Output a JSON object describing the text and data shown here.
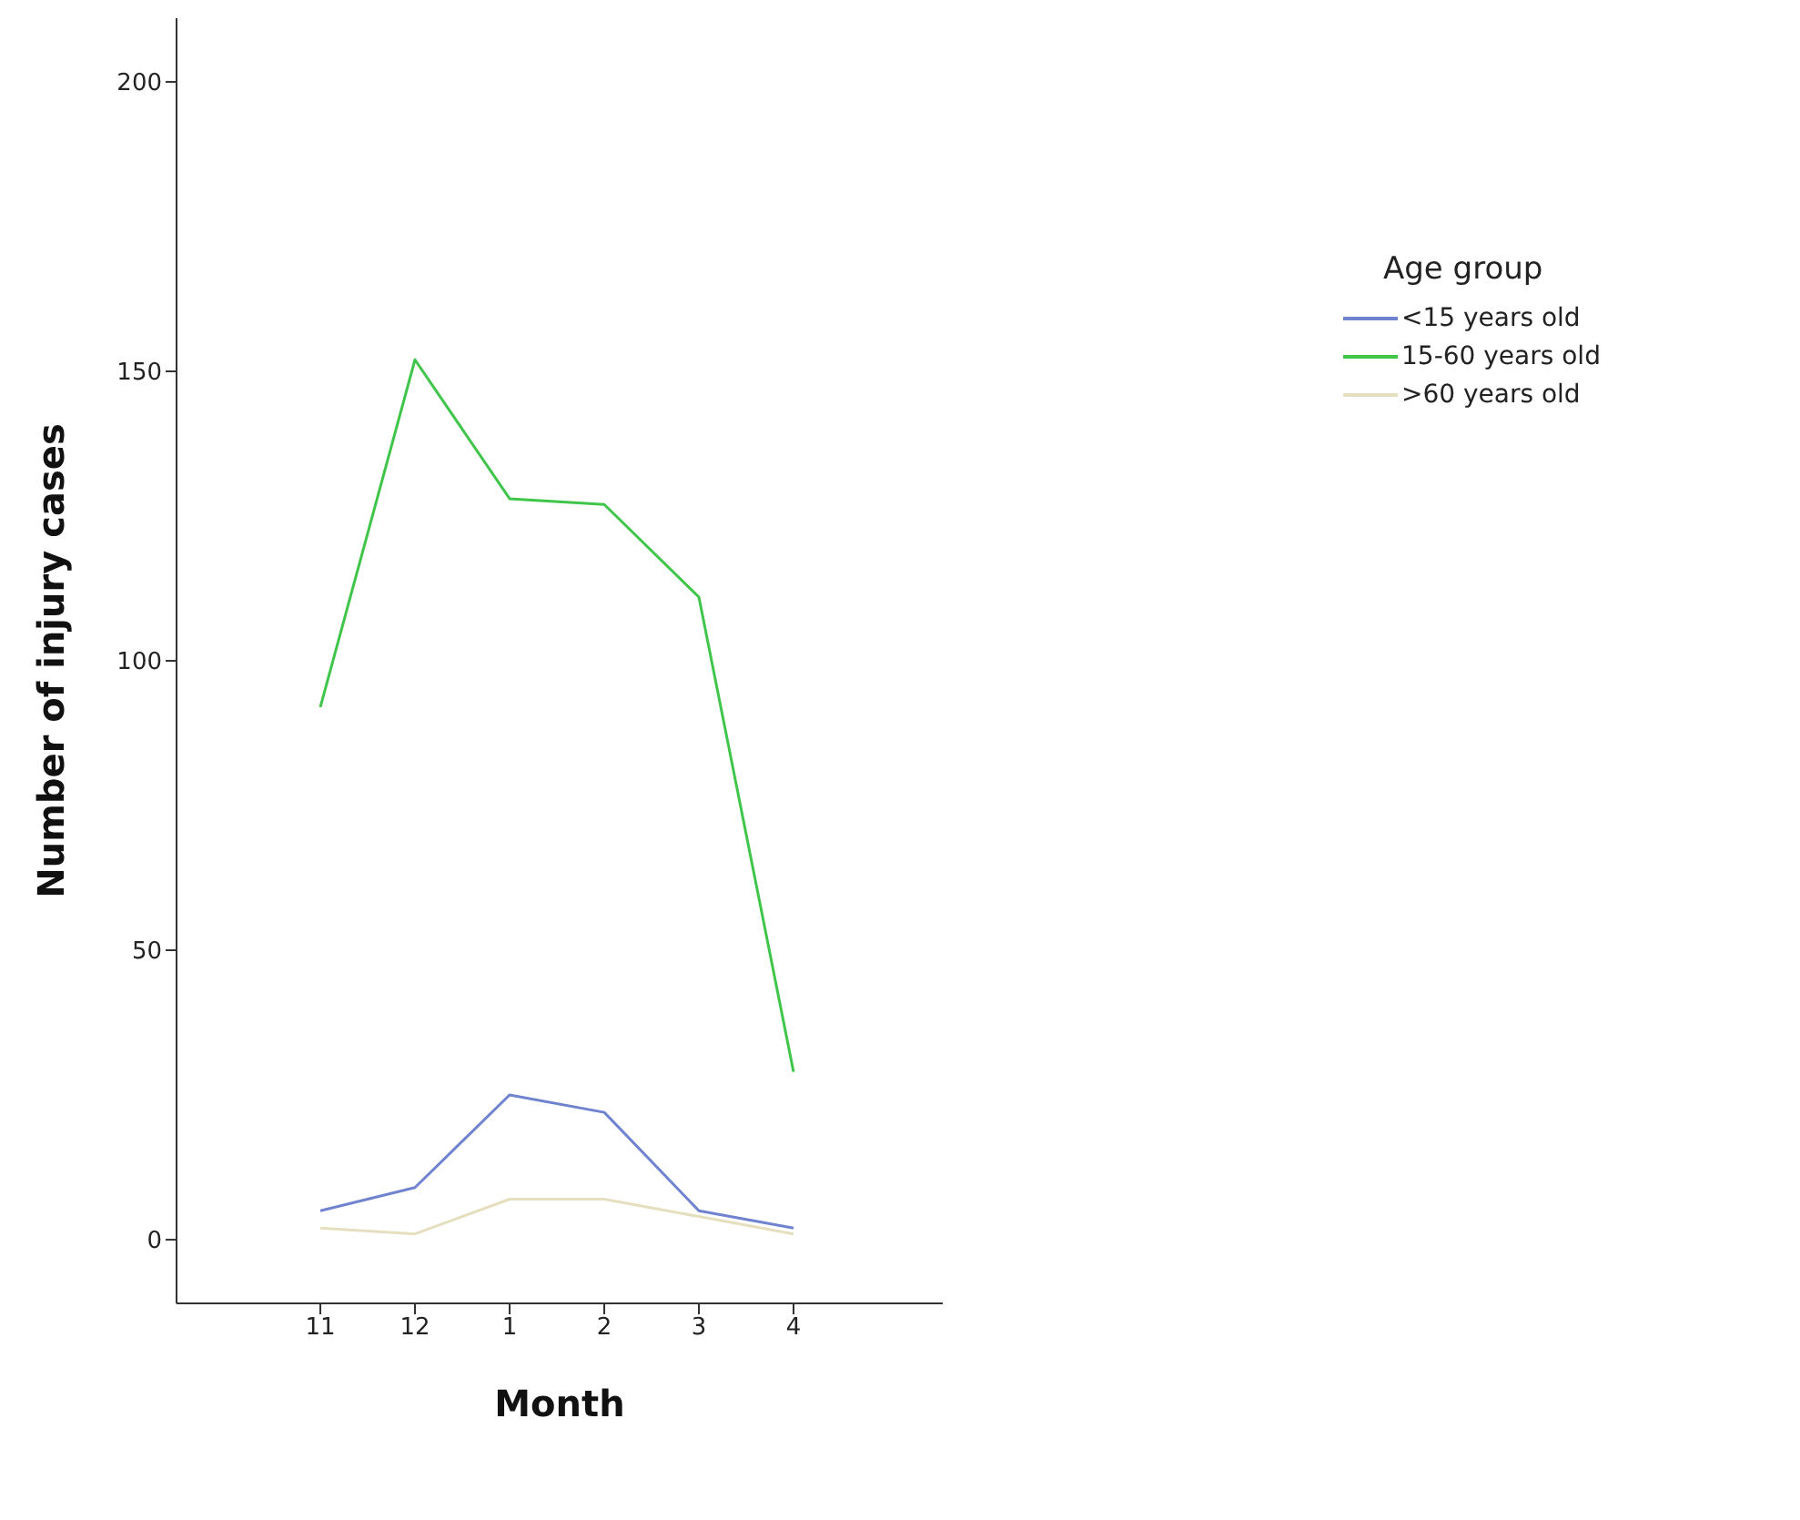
{
  "chart_data": {
    "type": "line",
    "xlabel": "Month",
    "ylabel": "Number of injury cases",
    "legend_title": "Age group",
    "categories": [
      "11",
      "12",
      "1",
      "2",
      "3",
      "4"
    ],
    "series": [
      {
        "name": "<15 years old",
        "color": "#7083cf",
        "values": [
          5,
          9,
          25,
          22,
          5,
          2
        ]
      },
      {
        "name": "15-60 years old",
        "color": "#3fc64a",
        "values": [
          92,
          152,
          128,
          127,
          111,
          29
        ]
      },
      {
        "name": ">60 years old",
        "color": "#e6dfbf",
        "values": [
          2,
          1,
          7,
          7,
          4,
          1
        ]
      }
    ],
    "ylim": [
      -11,
      211
    ],
    "yticks": [
      0,
      50,
      100,
      150,
      200
    ],
    "grid": false,
    "legend": "right",
    "marker": "none",
    "line_style": "solid"
  }
}
